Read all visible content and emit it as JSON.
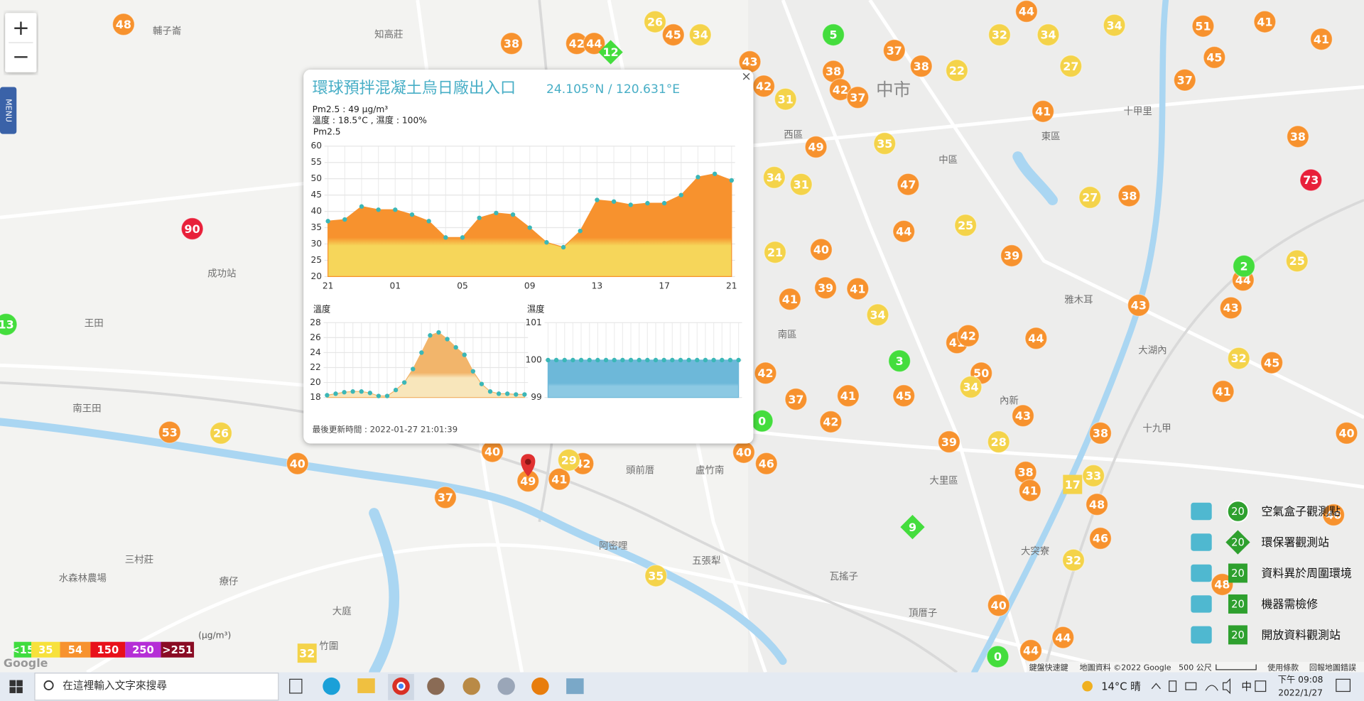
{
  "map": {
    "zoom_in": "+",
    "zoom_out": "−",
    "menu": "MENU",
    "place_labels": [
      "輔子崙",
      "知高莊",
      "成功站",
      "王田",
      "南王田",
      "三村莊",
      "水森林農場",
      "療仔",
      "大庭",
      "竹圍",
      "頭前厝",
      "盧竹南",
      "阿密哩",
      "五張犁",
      "瓦搖子",
      "中市",
      "中區",
      "東區",
      "西區",
      "南區",
      "大里區",
      "雅木耳",
      "大湖內",
      "十甲里",
      "十九甲",
      "頂厝子",
      "大突寮",
      "內新"
    ],
    "markers": [
      {
        "shape": "circle",
        "color": "#f7922e",
        "values": [
          48,
          38,
          42,
          44,
          45,
          43,
          42,
          38,
          42,
          37,
          37,
          38,
          44,
          41,
          41,
          51,
          45,
          37,
          41,
          38,
          49,
          47,
          38,
          44,
          40,
          39,
          41,
          39,
          41,
          43,
          43,
          44,
          44,
          41,
          42,
          42,
          37,
          41,
          45,
          42,
          43,
          38,
          45,
          41,
          40,
          40,
          46,
          39,
          38,
          41,
          48,
          46,
          40,
          44,
          44,
          40,
          40,
          41,
          42,
          49,
          37,
          53,
          48,
          50,
          46
        ]
      },
      {
        "shape": "circle",
        "color": "#f4d34a",
        "values": [
          26,
          34,
          32,
          34,
          34,
          27,
          22,
          35,
          34,
          31,
          27,
          25,
          21,
          34,
          34,
          28,
          33,
          32,
          32,
          25,
          29,
          26,
          35,
          31
        ]
      },
      {
        "shape": "circle",
        "color": "#e8203a",
        "values": [
          90,
          73
        ]
      },
      {
        "shape": "circle",
        "color": "#44dd3d",
        "values": [
          5,
          13,
          3,
          0,
          0,
          2
        ]
      },
      {
        "shape": "square",
        "color": "#f4d34a",
        "values": [
          17,
          32
        ]
      },
      {
        "shape": "diamond",
        "color": "#44dd3d",
        "values": [
          12,
          9
        ]
      }
    ],
    "scale_legend": {
      "unit": "(μg/m³)",
      "items": [
        {
          "label": "<15",
          "color": "#3fdc3f"
        },
        {
          "label": "35",
          "color": "#f7e13c"
        },
        {
          "label": "54",
          "color": "#f7922e"
        },
        {
          "label": "150",
          "color": "#e8101a"
        },
        {
          "label": "250",
          "color": "#b52fd6"
        },
        {
          "label": ">251",
          "color": "#8a0c24"
        }
      ]
    },
    "station_legend": [
      {
        "badge": "20",
        "label": "空氣盒子觀測點"
      },
      {
        "badge": "20",
        "label": "環保署觀測站"
      },
      {
        "badge": "20",
        "label": "資料異於周圍環境"
      },
      {
        "badge": "20",
        "label": "機器需檢修"
      },
      {
        "badge": "20",
        "label": "開放資料觀測站"
      }
    ],
    "attribution": [
      "鍵盤快速鍵",
      "地圖資料 ©2022 Google",
      "500 公尺",
      "使用條款",
      "回報地圖錯誤"
    ],
    "google": "Google"
  },
  "popup": {
    "title": "環球預拌混凝土烏日廠出入口",
    "coords": "24.105°N / 120.631°E",
    "close": "×",
    "pm_line": "Pm2.5 : 49 μg/m³",
    "weather_line": "溫度 : 18.5°C , 濕度 : 100%",
    "updated": "最後更新時間 : 2022-01-27 21:01:39",
    "charts": [
      {
        "type": "area",
        "title": "Pm2.5",
        "categories": [
          "21",
          null,
          null,
          null,
          "01",
          null,
          null,
          null,
          "05",
          null,
          null,
          null,
          "09",
          null,
          null,
          null,
          "13",
          null,
          null,
          null,
          "17",
          null,
          null,
          null,
          "21"
        ],
        "values": [
          37,
          37.5,
          41.5,
          40.5,
          40.5,
          39,
          37,
          32,
          32,
          38,
          39.5,
          39,
          35,
          30.5,
          29,
          34,
          43.5,
          43,
          42,
          42.5,
          42.5,
          45,
          50.5,
          51.5,
          49.5
        ],
        "ylim": [
          20,
          60
        ],
        "yticks": [
          20,
          25,
          30,
          35,
          40,
          45,
          50,
          55,
          60
        ],
        "colors": [
          "#f7922e",
          "#f6d65a"
        ],
        "marker_color": "#3bb7b7"
      },
      {
        "type": "area",
        "title": "溫度",
        "values": [
          18.3,
          18.5,
          18.7,
          18.8,
          18.8,
          18.6,
          18.2,
          18.2,
          19,
          20,
          21.8,
          24,
          26.3,
          26.7,
          25.8,
          24.7,
          23.7,
          21.5,
          19.8,
          18.8,
          18.5,
          18.5,
          18.4,
          18.4
        ],
        "ylim": [
          18,
          28
        ],
        "yticks": [
          18,
          20,
          22,
          24,
          26,
          28
        ],
        "colors": [
          "#f2b56b",
          "#f8e6bb"
        ],
        "marker_color": "#3bb7b7"
      },
      {
        "type": "area",
        "title": "濕度",
        "values": [
          100,
          100,
          100,
          100,
          100,
          100,
          100,
          100,
          100,
          100,
          100,
          100,
          100,
          100,
          100,
          100,
          100,
          100,
          100,
          100,
          100,
          100,
          100,
          100
        ],
        "ylim": [
          99,
          101
        ],
        "yticks": [
          99,
          100,
          101
        ],
        "colors": [
          "#6db8d9",
          "#8cc9e3"
        ],
        "marker_color": "#3bb7b7"
      }
    ]
  },
  "taskbar": {
    "search": "在這裡輸入文字來搜尋",
    "weather": "14°C 晴",
    "ime": "中",
    "time": "下午 09:08",
    "date": "2022/1/27"
  }
}
